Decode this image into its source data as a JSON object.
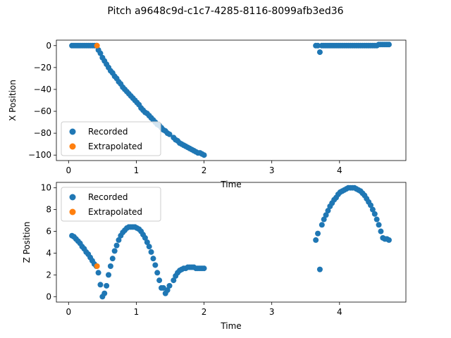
{
  "title": "Pitch a9648c9d-c1c7-4285-8116-8099afb3ed36",
  "colors": {
    "recorded": "#1f77b4",
    "extrapolated": "#ff7f0e"
  },
  "chart_data": [
    {
      "type": "scatter",
      "xlabel": "Time",
      "ylabel": "X Position",
      "xlim": [
        -0.18,
        4.98
      ],
      "ylim": [
        -105,
        5
      ],
      "xticks": [
        0,
        1,
        2,
        3,
        4
      ],
      "yticks": [
        0,
        -20,
        -40,
        -60,
        -80,
        -100
      ],
      "legend_position": "lower-left",
      "series": [
        {
          "name": "Recorded",
          "color": "#1f77b4",
          "x": [
            0.05,
            0.08,
            0.11,
            0.14,
            0.17,
            0.2,
            0.23,
            0.26,
            0.29,
            0.32,
            0.35,
            0.38,
            0.41,
            0.44,
            0.47,
            0.5,
            0.53,
            0.56,
            0.59,
            0.62,
            0.65,
            0.68,
            0.71,
            0.74,
            0.77,
            0.8,
            0.83,
            0.86,
            0.89,
            0.92,
            0.95,
            0.98,
            1.01,
            1.04,
            1.07,
            1.1,
            1.13,
            1.16,
            1.19,
            1.22,
            1.25,
            1.28,
            1.31,
            1.34,
            1.37,
            1.4,
            1.43,
            1.46,
            1.49,
            1.55,
            1.58,
            1.61,
            1.64,
            1.67,
            1.7,
            1.73,
            1.76,
            1.79,
            1.82,
            1.85,
            1.88,
            1.91,
            1.94,
            1.97,
            2.0,
            3.65,
            3.68,
            3.71,
            3.74,
            3.77,
            3.8,
            3.83,
            3.86,
            3.89,
            3.92,
            3.95,
            3.98,
            4.01,
            4.04,
            4.07,
            4.1,
            4.13,
            4.16,
            4.19,
            4.22,
            4.25,
            4.28,
            4.31,
            4.34,
            4.37,
            4.4,
            4.43,
            4.46,
            4.49,
            4.52,
            4.55,
            4.58,
            4.61,
            4.64,
            4.67,
            4.7,
            4.73
          ],
          "y": [
            0,
            0,
            0,
            0,
            0,
            0,
            0,
            0,
            0,
            0,
            0,
            0,
            0,
            -4,
            -7,
            -11,
            -14,
            -17,
            -20,
            -23,
            -25,
            -28,
            -30,
            -33,
            -35,
            -38,
            -40,
            -42,
            -44,
            -46,
            -48,
            -50,
            -52,
            -54,
            -57,
            -59,
            -61,
            -62,
            -64,
            -66,
            -68,
            -70,
            -72,
            -73,
            -75,
            -77,
            -78,
            -80,
            -81,
            -84,
            -86,
            -87,
            -89,
            -90,
            -91,
            -92,
            -93,
            -94,
            -95,
            -96,
            -97,
            -98,
            -98,
            -99,
            -100,
            0,
            0,
            -6,
            0,
            0,
            0,
            0,
            0,
            0,
            0,
            0,
            0,
            0,
            0,
            0,
            0,
            0,
            0,
            0,
            0,
            0,
            0,
            0,
            0,
            0,
            0,
            0,
            0,
            0,
            0,
            0,
            1,
            1,
            1,
            1,
            1,
            1
          ]
        },
        {
          "name": "Extrapolated",
          "color": "#ff7f0e",
          "x": [
            0.42
          ],
          "y": [
            0
          ]
        }
      ]
    },
    {
      "type": "scatter",
      "xlabel": "Time",
      "ylabel": "Z Position",
      "xlim": [
        -0.18,
        4.98
      ],
      "ylim": [
        -0.5,
        10.5
      ],
      "xticks": [
        0,
        1,
        2,
        3,
        4
      ],
      "yticks": [
        0,
        2,
        4,
        6,
        8,
        10
      ],
      "legend_position": "upper-left",
      "series": [
        {
          "name": "Recorded",
          "color": "#1f77b4",
          "x": [
            0.05,
            0.08,
            0.11,
            0.14,
            0.17,
            0.2,
            0.23,
            0.26,
            0.29,
            0.32,
            0.35,
            0.38,
            0.41,
            0.44,
            0.47,
            0.5,
            0.53,
            0.56,
            0.59,
            0.62,
            0.65,
            0.68,
            0.71,
            0.74,
            0.77,
            0.8,
            0.83,
            0.86,
            0.89,
            0.92,
            0.95,
            0.98,
            1.01,
            1.04,
            1.07,
            1.1,
            1.13,
            1.16,
            1.19,
            1.22,
            1.25,
            1.28,
            1.31,
            1.34,
            1.37,
            1.4,
            1.43,
            1.46,
            1.49,
            1.55,
            1.58,
            1.61,
            1.64,
            1.67,
            1.7,
            1.73,
            1.76,
            1.79,
            1.82,
            1.85,
            1.88,
            1.91,
            1.94,
            1.97,
            2.0,
            3.65,
            3.68,
            3.71,
            3.74,
            3.77,
            3.8,
            3.83,
            3.86,
            3.89,
            3.92,
            3.95,
            3.98,
            4.01,
            4.04,
            4.07,
            4.1,
            4.13,
            4.16,
            4.19,
            4.22,
            4.25,
            4.28,
            4.31,
            4.34,
            4.37,
            4.4,
            4.43,
            4.46,
            4.49,
            4.52,
            4.55,
            4.58,
            4.61,
            4.64,
            4.67,
            4.7,
            4.73
          ],
          "y": [
            5.6,
            5.5,
            5.3,
            5.1,
            4.9,
            4.6,
            4.4,
            4.1,
            3.9,
            3.6,
            3.3,
            3.0,
            2.8,
            2.2,
            1.1,
            0.0,
            0.3,
            1.0,
            2.0,
            2.8,
            3.5,
            4.2,
            4.7,
            5.2,
            5.6,
            5.9,
            6.1,
            6.3,
            6.4,
            6.4,
            6.4,
            6.4,
            6.3,
            6.2,
            6.0,
            5.7,
            5.4,
            5.0,
            4.6,
            4.1,
            3.5,
            2.9,
            2.2,
            1.5,
            0.8,
            0.8,
            0.3,
            0.6,
            1.0,
            1.5,
            1.9,
            2.2,
            2.4,
            2.5,
            2.6,
            2.6,
            2.7,
            2.7,
            2.7,
            2.7,
            2.6,
            2.6,
            2.6,
            2.6,
            2.6,
            5.2,
            5.8,
            2.5,
            6.6,
            7.1,
            7.5,
            7.9,
            8.3,
            8.6,
            8.9,
            9.1,
            9.4,
            9.6,
            9.7,
            9.8,
            9.9,
            10.0,
            10.0,
            10.0,
            10.0,
            9.9,
            9.8,
            9.7,
            9.5,
            9.3,
            9.0,
            8.7,
            8.4,
            8.0,
            7.6,
            7.1,
            6.6,
            6.0,
            5.4,
            5.3,
            5.3,
            5.2
          ]
        },
        {
          "name": "Extrapolated",
          "color": "#ff7f0e",
          "x": [
            0.42
          ],
          "y": [
            2.8
          ]
        }
      ]
    }
  ]
}
